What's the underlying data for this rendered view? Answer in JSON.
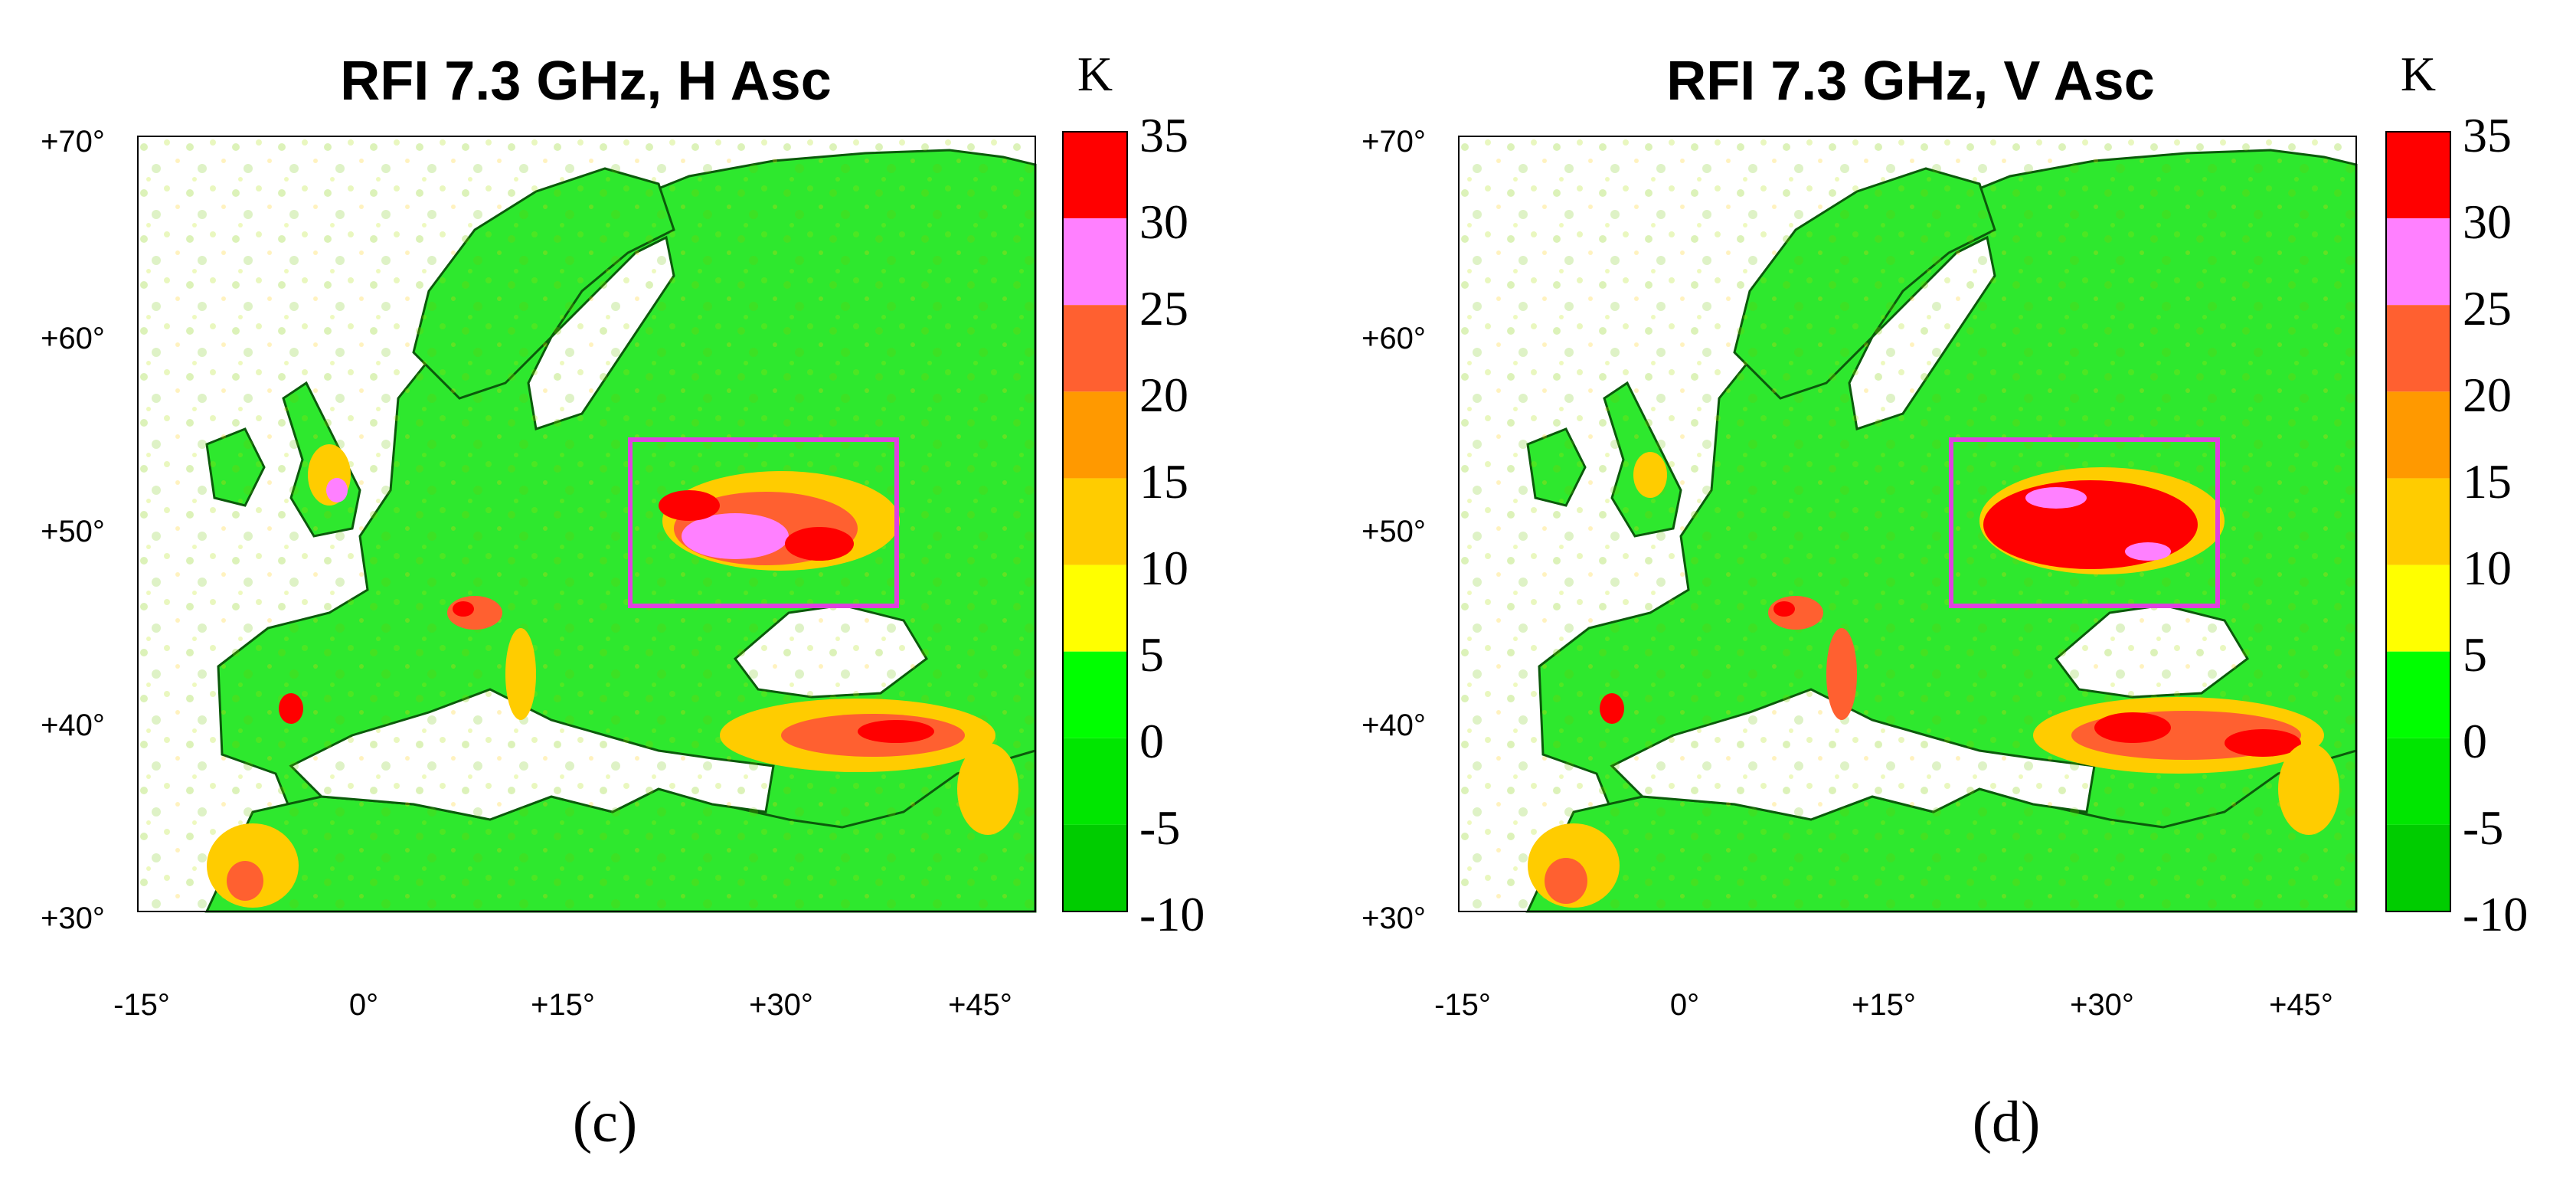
{
  "chart_data": [
    {
      "type": "heatmap",
      "title": "RFI 7.3 GHz, H Asc",
      "panel_label": "(c)",
      "colorbar": {
        "unit": "K",
        "ticks": [
          "35",
          "30",
          "25",
          "20",
          "15",
          "10",
          "5",
          "0",
          "-5",
          "-10"
        ],
        "bins": [
          {
            "from": 30,
            "to": 35,
            "color": "#ff0000"
          },
          {
            "from": 25,
            "to": 30,
            "color": "#ff80ff"
          },
          {
            "from": 20,
            "to": 25,
            "color": "#ff6030"
          },
          {
            "from": 15,
            "to": 20,
            "color": "#ff9900"
          },
          {
            "from": 10,
            "to": 15,
            "color": "#ffcc00"
          },
          {
            "from": 5,
            "to": 10,
            "color": "#ffff00"
          },
          {
            "from": 0,
            "to": 5,
            "color": "#00ff00"
          },
          {
            "from": -5,
            "to": 0,
            "color": "#00e600"
          },
          {
            "from": -10,
            "to": -5,
            "color": "#00cc00"
          }
        ]
      },
      "x_ticks": [
        "-15°",
        "0°",
        "+15°",
        "+30°",
        "+45°"
      ],
      "y_ticks": [
        "+70°",
        "+60°",
        "+50°",
        "+40°",
        "+30°"
      ],
      "xlim": [
        -15,
        50
      ],
      "ylim": [
        30,
        70
      ],
      "highlight_box": {
        "lon": [
          22,
          40
        ],
        "lat": [
          46,
          54.5
        ],
        "color": "#e040e0"
      },
      "hotspots": [
        {
          "lon": 31,
          "lat": 50,
          "value": 22
        },
        {
          "lon": 36,
          "lat": 40,
          "value": 18
        },
        {
          "lon": -3,
          "lat": 53,
          "value": 14
        },
        {
          "lon": 12,
          "lat": 45,
          "value": 12
        }
      ]
    },
    {
      "type": "heatmap",
      "title": "RFI 7.3 GHz, V Asc",
      "panel_label": "(d)",
      "colorbar": {
        "unit": "K",
        "ticks": [
          "35",
          "30",
          "25",
          "20",
          "15",
          "10",
          "5",
          "0",
          "-5",
          "-10"
        ],
        "bins": [
          {
            "from": 30,
            "to": 35,
            "color": "#ff0000"
          },
          {
            "from": 25,
            "to": 30,
            "color": "#ff80ff"
          },
          {
            "from": 20,
            "to": 25,
            "color": "#ff6030"
          },
          {
            "from": 15,
            "to": 20,
            "color": "#ff9900"
          },
          {
            "from": 10,
            "to": 15,
            "color": "#ffcc00"
          },
          {
            "from": 5,
            "to": 10,
            "color": "#ffff00"
          },
          {
            "from": 0,
            "to": 5,
            "color": "#00ff00"
          },
          {
            "from": -5,
            "to": 0,
            "color": "#00e600"
          },
          {
            "from": -10,
            "to": -5,
            "color": "#00cc00"
          }
        ]
      },
      "x_ticks": [
        "-15°",
        "0°",
        "+15°",
        "+30°",
        "+45°"
      ],
      "y_ticks": [
        "+70°",
        "+60°",
        "+50°",
        "+40°",
        "+30°"
      ],
      "xlim": [
        -15,
        50
      ],
      "ylim": [
        30,
        70
      ],
      "highlight_box": {
        "lon": [
          22,
          40
        ],
        "lat": [
          46,
          54.5
        ],
        "color": "#e040e0"
      },
      "hotspots": [
        {
          "lon": 30,
          "lat": 50,
          "value": 32
        },
        {
          "lon": 36,
          "lat": 40,
          "value": 24
        },
        {
          "lon": -3,
          "lat": 53,
          "value": 12
        },
        {
          "lon": 12,
          "lat": 45,
          "value": 14
        }
      ]
    }
  ]
}
